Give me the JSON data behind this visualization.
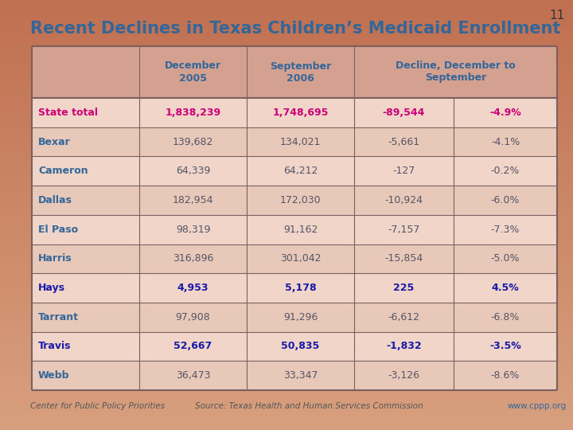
{
  "title": "Recent Declines in Texas Children’s Medicaid Enrollment",
  "slide_number": "11",
  "bg_color": "#c8785a",
  "table_bg_even": "#f0d5c8",
  "table_bg_odd": "#e8c8b8",
  "table_header_bg": "#d4a090",
  "table_border_color": "#7a6060",
  "col_headers": [
    "December\n2005",
    "September\n2006",
    "Decline, December to\nSeptember"
  ],
  "rows": [
    {
      "label": "State total",
      "values": [
        "1,838,239",
        "1,748,695",
        "-89,544",
        "-4.9%"
      ],
      "label_color": "#cc0077",
      "value_colors": [
        "#cc0077",
        "#cc0077",
        "#cc0077",
        "#cc0077"
      ],
      "bold": true
    },
    {
      "label": "Bexar",
      "values": [
        "139,682",
        "134,021",
        "-5,661",
        "-4.1%"
      ],
      "label_color": "#336699",
      "value_colors": [
        "#555566",
        "#555566",
        "#555566",
        "#555566"
      ],
      "bold": false
    },
    {
      "label": "Cameron",
      "values": [
        "64,339",
        "64,212",
        "-127",
        "-0.2%"
      ],
      "label_color": "#336699",
      "value_colors": [
        "#555566",
        "#555566",
        "#555566",
        "#555566"
      ],
      "bold": false
    },
    {
      "label": "Dallas",
      "values": [
        "182,954",
        "172,030",
        "-10,924",
        "-6.0%"
      ],
      "label_color": "#336699",
      "value_colors": [
        "#555566",
        "#555566",
        "#555566",
        "#555566"
      ],
      "bold": false
    },
    {
      "label": "El Paso",
      "values": [
        "98,319",
        "91,162",
        "-7,157",
        "-7.3%"
      ],
      "label_color": "#336699",
      "value_colors": [
        "#555566",
        "#555566",
        "#555566",
        "#555566"
      ],
      "bold": false
    },
    {
      "label": "Harris",
      "values": [
        "316,896",
        "301,042",
        "-15,854",
        "-5.0%"
      ],
      "label_color": "#336699",
      "value_colors": [
        "#555566",
        "#555566",
        "#555566",
        "#555566"
      ],
      "bold": false
    },
    {
      "label": "Hays",
      "values": [
        "4,953",
        "5,178",
        "225",
        "4.5%"
      ],
      "label_color": "#1a1aaa",
      "value_colors": [
        "#1a1aaa",
        "#1a1aaa",
        "#1a1aaa",
        "#1a1aaa"
      ],
      "bold": true
    },
    {
      "label": "Tarrant",
      "values": [
        "97,908",
        "91,296",
        "-6,612",
        "-6.8%"
      ],
      "label_color": "#336699",
      "value_colors": [
        "#555566",
        "#555566",
        "#555566",
        "#555566"
      ],
      "bold": false
    },
    {
      "label": "Travis",
      "values": [
        "52,667",
        "50,835",
        "-1,832",
        "-3.5%"
      ],
      "label_color": "#1a1aaa",
      "value_colors": [
        "#1a1aaa",
        "#1a1aaa",
        "#1a1aaa",
        "#1a1aaa"
      ],
      "bold": true
    },
    {
      "label": "Webb",
      "values": [
        "36,473",
        "33,347",
        "-3,126",
        "-8.6%"
      ],
      "label_color": "#336699",
      "value_colors": [
        "#555566",
        "#555566",
        "#555566",
        "#555566"
      ],
      "bold": false
    }
  ],
  "footer_left": "Center for Public Policy Priorities",
  "footer_source": "Source: Texas Health and Human Services Commission",
  "footer_right": "www.cppp.org",
  "header_text_color": "#336699",
  "title_color": "#336699",
  "title_fontsize": 15,
  "header_fontsize": 9,
  "cell_fontsize": 9
}
